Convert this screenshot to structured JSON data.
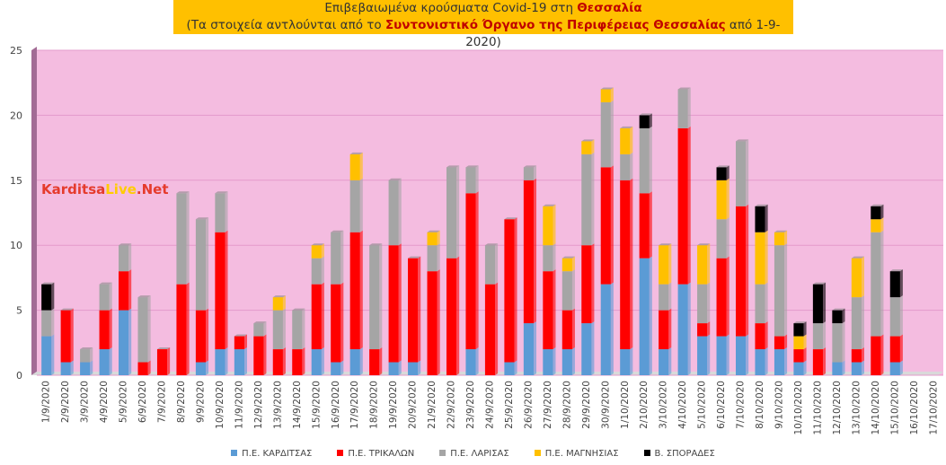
{
  "title": {
    "line1_prefix": "Επιβεβαιωμένα κρούσματα Covid-19 στη ",
    "line1_bold": "Θεσσαλία",
    "line2_prefix": "(Τα στοιχεία αντλούνται από το ",
    "line2_bold": "Συντονιστικό Όργανο της Περιφέρειας Θεσσαλίας",
    "line2_suffix": " από 1-9-2020)"
  },
  "watermark": {
    "part1": "Karditsa",
    "part2": "Live",
    "part3": ".Net"
  },
  "chart_data": {
    "type": "bar",
    "stacked": true,
    "ylim": [
      0,
      25
    ],
    "yticks": [
      0,
      5,
      10,
      15,
      20,
      25
    ],
    "grid": true,
    "legend_position": "bottom",
    "categories": [
      "1/9/2020",
      "2/9/2020",
      "3/9/2020",
      "4/9/2020",
      "5/9/2020",
      "6/9/2020",
      "7/9/2020",
      "8/9/2020",
      "9/9/2020",
      "10/9/2020",
      "11/9/2020",
      "12/9/2020",
      "13/9/2020",
      "14/9/2020",
      "15/9/2020",
      "16/9/2020",
      "17/9/2020",
      "18/9/2020",
      "19/9/2020",
      "20/9/2020",
      "21/9/2020",
      "22/9/2020",
      "23/9/2020",
      "24/9/2020",
      "25/9/2020",
      "26/9/2020",
      "27/9/2020",
      "28/9/2020",
      "29/9/2020",
      "30/9/2020",
      "1/10/2020",
      "2/10/2020",
      "3/10/2020",
      "4/10/2020",
      "5/10/2020",
      "6/10/2020",
      "7/10/2020",
      "8/10/2020",
      "9/10/2020",
      "10/10/2020",
      "11/10/2020",
      "12/10/2020",
      "13/10/2020",
      "14/10/2020",
      "15/10/2020",
      "16/10/2020",
      "17/10/2020"
    ],
    "series": [
      {
        "name": "Π.Ε. ΚΑΡΔΙΤΣΑΣ",
        "color": "#5b9bd5",
        "values": [
          3,
          1,
          1,
          2,
          5,
          0,
          0,
          0,
          1,
          2,
          2,
          0,
          0,
          0,
          2,
          1,
          2,
          0,
          1,
          1,
          0,
          0,
          2,
          0,
          1,
          4,
          2,
          2,
          4,
          7,
          2,
          9,
          2,
          7,
          3,
          3,
          3,
          2,
          2,
          1,
          0,
          1,
          1,
          0,
          1,
          0,
          0
        ]
      },
      {
        "name": "Π.Ε. ΤΡΙΚΑΛΩΝ",
        "color": "#ff0000",
        "values": [
          0,
          4,
          0,
          3,
          3,
          1,
          2,
          7,
          4,
          9,
          1,
          3,
          2,
          2,
          5,
          6,
          9,
          2,
          9,
          8,
          8,
          9,
          12,
          7,
          11,
          11,
          6,
          3,
          6,
          9,
          13,
          5,
          3,
          12,
          1,
          6,
          10,
          2,
          1,
          1,
          2,
          0,
          1,
          3,
          2,
          0,
          0
        ]
      },
      {
        "name": "Π.Ε. ΛΑΡΙΣΑΣ",
        "color": "#a5a5a5",
        "values": [
          2,
          0,
          1,
          2,
          2,
          5,
          0,
          7,
          7,
          3,
          0,
          1,
          3,
          3,
          2,
          4,
          4,
          8,
          5,
          0,
          2,
          7,
          2,
          3,
          0,
          1,
          2,
          3,
          7,
          5,
          2,
          5,
          2,
          3,
          3,
          3,
          5,
          3,
          7,
          0,
          2,
          3,
          4,
          8,
          3,
          0,
          0
        ]
      },
      {
        "name": "Π.Ε. ΜΑΓΝΗΣΙΑΣ",
        "color": "#ffc000",
        "values": [
          0,
          0,
          0,
          0,
          0,
          0,
          0,
          0,
          0,
          0,
          0,
          0,
          1,
          0,
          1,
          0,
          2,
          0,
          0,
          0,
          1,
          0,
          0,
          0,
          0,
          0,
          3,
          1,
          1,
          1,
          2,
          0,
          3,
          0,
          3,
          3,
          0,
          4,
          1,
          1,
          0,
          0,
          3,
          1,
          0,
          0,
          0
        ]
      },
      {
        "name": "Β. ΣΠΟΡΑΔΕΣ",
        "color": "#000000",
        "values": [
          2,
          0,
          0,
          0,
          0,
          0,
          0,
          0,
          0,
          0,
          0,
          0,
          0,
          0,
          0,
          0,
          0,
          0,
          0,
          0,
          0,
          0,
          0,
          0,
          0,
          0,
          0,
          0,
          0,
          0,
          0,
          1,
          0,
          0,
          0,
          1,
          0,
          2,
          0,
          1,
          3,
          1,
          0,
          1,
          2,
          0,
          0
        ]
      }
    ]
  }
}
